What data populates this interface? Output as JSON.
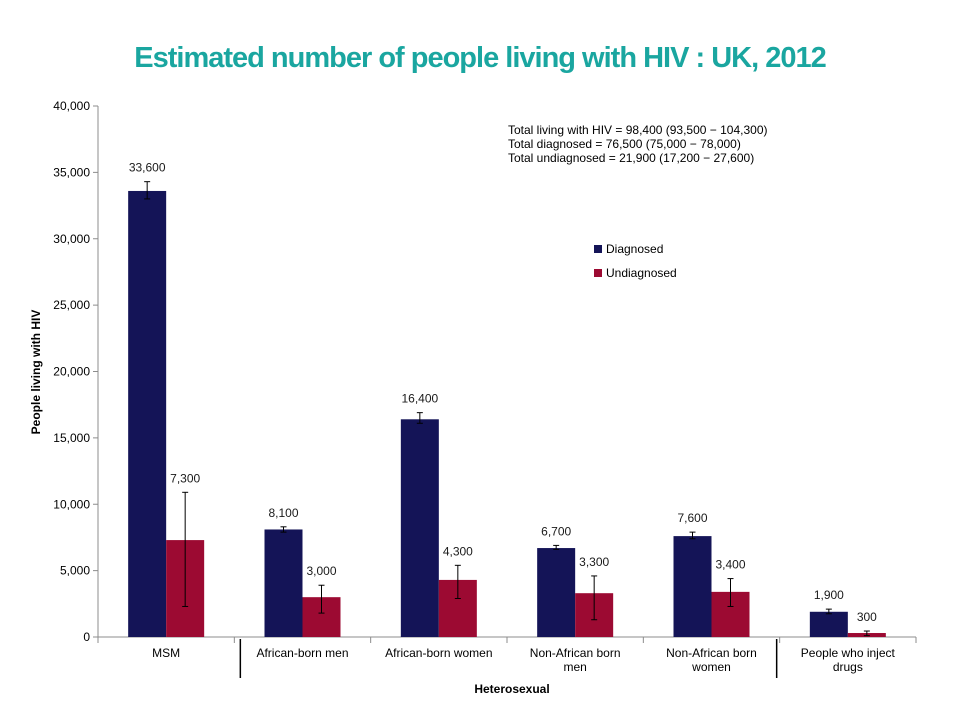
{
  "title": "Estimated number of people living with HIV : UK, 2012",
  "summary": [
    "Total living with HIV = 98,400 (93,500 − 104,300)",
    "Total diagnosed = 76,500 (75,000 − 78,000)",
    "Total undiagnosed = 21,900 (17,200 − 27,600)"
  ],
  "chart_data": {
    "type": "bar",
    "title": "Estimated number of people living with HIV : UK, 2012",
    "ylabel": "People living with HIV",
    "xlabel": "Heterosexual",
    "ylim": [
      0,
      40000
    ],
    "yticks": [
      "0",
      "5,000",
      "10,000",
      "15,000",
      "20,000",
      "25,000",
      "30,000",
      "35,000",
      "40,000"
    ],
    "categories": [
      [
        "MSM"
      ],
      [
        "African-born men"
      ],
      [
        "African-born women"
      ],
      [
        "Non-African born",
        "men"
      ],
      [
        "Non-African born",
        "women"
      ],
      [
        "People who inject",
        "drugs"
      ]
    ],
    "legend_position": "upper-right",
    "grid": false,
    "series": [
      {
        "name": "Diagnosed",
        "color": "#141457",
        "values": [
          33600,
          8100,
          16400,
          6700,
          7600,
          1900
        ],
        "labels": [
          "33,600",
          "8,100",
          "16,400",
          "6,700",
          "7,600",
          "1,900"
        ],
        "error_low": [
          33000,
          7900,
          16100,
          6600,
          7400,
          1750
        ],
        "error_high": [
          34300,
          8300,
          16900,
          6900,
          7900,
          2100
        ]
      },
      {
        "name": "Undiagnosed",
        "color": "#9c0a32",
        "values": [
          7300,
          3000,
          4300,
          3300,
          3400,
          300
        ],
        "labels": [
          "7,300",
          "3,000",
          "4,300",
          "3,300",
          "3,400",
          "300"
        ],
        "error_low": [
          2300,
          1800,
          2900,
          1300,
          2300,
          100
        ],
        "error_high": [
          10900,
          3900,
          5400,
          4600,
          4400,
          450
        ]
      }
    ]
  }
}
